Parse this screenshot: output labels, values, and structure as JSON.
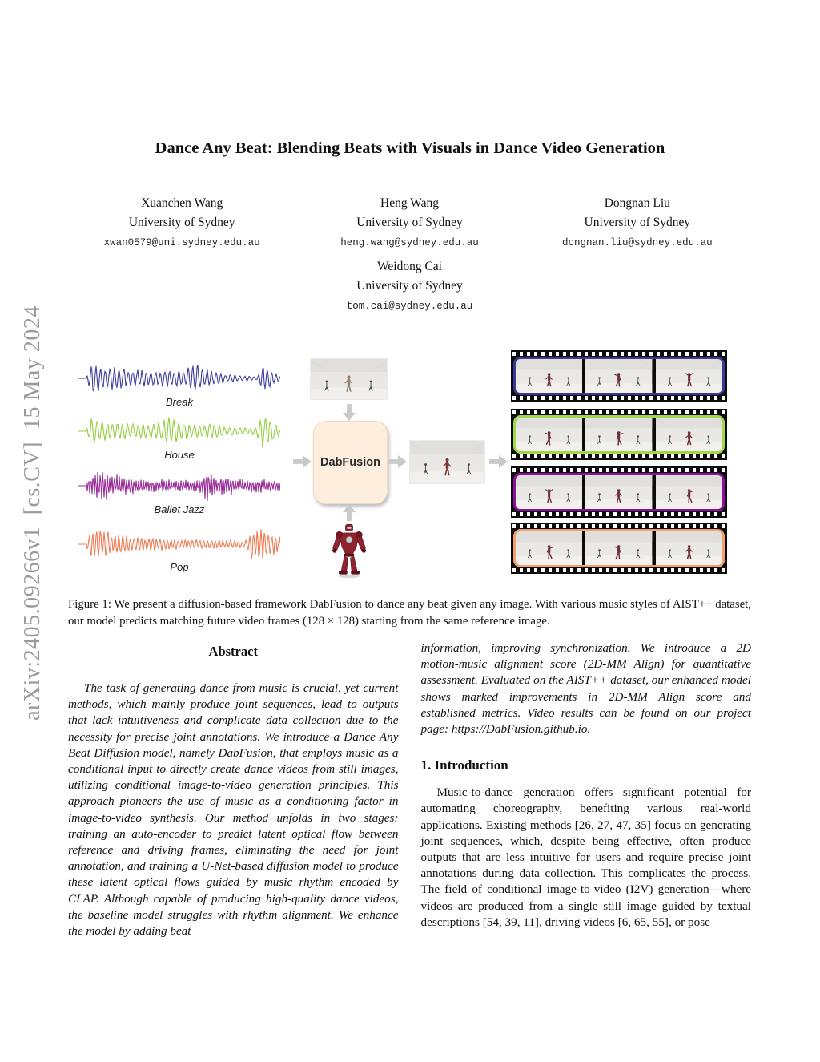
{
  "sidebar": {
    "arxiv_label": "arXiv:2405.09266v1  [cs.CV]  15 May 2024"
  },
  "title": "Dance Any Beat: Blending Beats with Visuals in Dance Video Generation",
  "authors": [
    {
      "name": "Xuanchen Wang",
      "affiliation": "University of Sydney",
      "email": "xwan0579@uni.sydney.edu.au"
    },
    {
      "name": "Heng Wang",
      "affiliation": "University of Sydney",
      "email": "heng.wang@sydney.edu.au"
    },
    {
      "name": "Dongnan Liu",
      "affiliation": "University of Sydney",
      "email": "dongnan.liu@sydney.edu.au"
    },
    {
      "name": "Weidong Cai",
      "affiliation": "University of Sydney",
      "email": "tom.cai@sydney.edu.au"
    }
  ],
  "figure": {
    "model_label": "DabFusion",
    "waveforms": [
      {
        "label": "Break",
        "color": "#3e3e9e"
      },
      {
        "label": "House",
        "color": "#96ce3f"
      },
      {
        "label": "Ballet Jazz",
        "color": "#992c99"
      },
      {
        "label": "Pop",
        "color": "#ef7c55"
      }
    ],
    "strips": [
      {
        "color": "#3a3a96"
      },
      {
        "color": "#a2d74b"
      },
      {
        "color": "#8e0f9e"
      },
      {
        "color": "#f2a06e"
      }
    ]
  },
  "caption": "Figure 1: We present a diffusion-based framework DabFusion to dance any beat given any image. With various music styles of AIST++ dataset, our model predicts matching future video frames (128 × 128) starting from the same reference image.",
  "abstract": {
    "heading": "Abstract",
    "paragraph": "The task of generating dance from music is crucial, yet current methods, which mainly produce joint sequences, lead to outputs that lack intuitiveness and complicate data collection due to the necessity for precise joint annotations. We introduce a Dance Any Beat Diffusion model, namely DabFusion, that employs music as a conditional input to directly create dance videos from still images, utilizing conditional image-to-video generation principles. This approach pioneers the use of music as a conditioning factor in image-to-video synthesis. Our method unfolds in two stages: training an auto-encoder to predict latent optical flow between reference and driving frames, eliminating the need for joint annotation, and training a U-Net-based diffusion model to produce these latent optical flows guided by music rhythm encoded by CLAP. Although capable of producing high-quality dance videos, the baseline model struggles with rhythm alignment. We enhance the model by adding beat"
  },
  "right_column": {
    "continuation": "information, improving synchronization. We introduce a 2D motion-music alignment score (2D-MM Align) for quantitative assessment. Evaluated on the AIST++ dataset, our enhanced model shows marked improvements in 2D-MM Align score and established metrics. Video results can be found on our project page: https://DabFusion.github.io."
  },
  "introduction": {
    "heading": "1. Introduction",
    "paragraph": "Music-to-dance generation offers significant potential for automating choreography, benefiting various real-world applications. Existing methods [26, 27, 47, 35] focus on generating joint sequences, which, despite being effective, often produce outputs that are less intuitive for users and require precise joint annotations during data collection. This complicates the process. The field of conditional image-to-video (I2V) generation—where videos are produced from a single still image guided by textual descriptions [54, 39, 11], driving videos [6, 65, 55], or pose"
  }
}
